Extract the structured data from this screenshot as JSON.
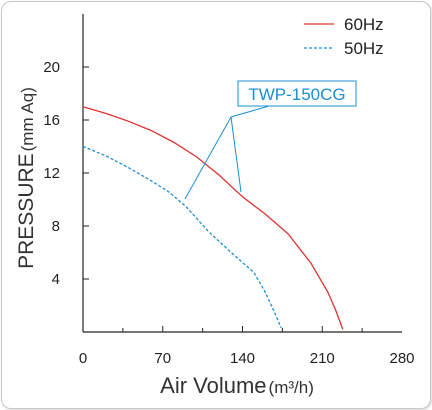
{
  "chart_data": {
    "type": "line",
    "title": "",
    "xlabel": "Air Volume",
    "xunit": "(m³/h)",
    "ylabel": "PRESSURE",
    "yunit": "(mm Aq)",
    "xlim": [
      0,
      280
    ],
    "ylim": [
      0,
      24
    ],
    "xticks": [
      0,
      70,
      140,
      210,
      280
    ],
    "yticks": [
      4,
      8,
      12,
      16,
      20
    ],
    "grid": false,
    "legend_position": "top-right",
    "annotation": "TWP-150CG",
    "series": [
      {
        "name": "60Hz",
        "color": "#e03030",
        "style": "solid",
        "points": [
          [
            0,
            17.0
          ],
          [
            20,
            16.5
          ],
          [
            40,
            15.9
          ],
          [
            60,
            15.2
          ],
          [
            80,
            14.3
          ],
          [
            100,
            13.2
          ],
          [
            120,
            11.8
          ],
          [
            140,
            10.2
          ],
          [
            160,
            8.9
          ],
          [
            180,
            7.4
          ],
          [
            200,
            5.2
          ],
          [
            215,
            3.0
          ],
          [
            222,
            1.6
          ],
          [
            228,
            0.2
          ]
        ]
      },
      {
        "name": "50Hz",
        "color": "#1b8fd6",
        "style": "dashed",
        "points": [
          [
            0,
            14.0
          ],
          [
            20,
            13.3
          ],
          [
            40,
            12.4
          ],
          [
            60,
            11.4
          ],
          [
            75,
            10.6
          ],
          [
            90,
            9.5
          ],
          [
            110,
            7.6
          ],
          [
            130,
            6.0
          ],
          [
            150,
            4.5
          ],
          [
            160,
            3.0
          ],
          [
            168,
            1.5
          ],
          [
            174,
            0.3
          ]
        ]
      }
    ]
  }
}
